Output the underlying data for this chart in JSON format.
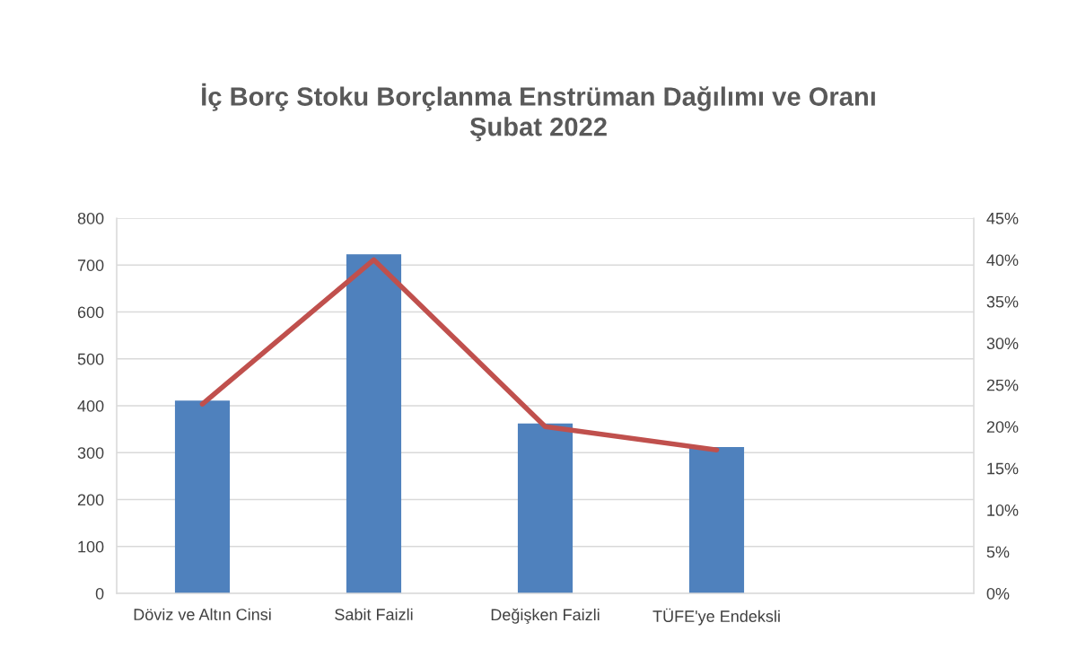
{
  "chart_data": {
    "type": "bar",
    "title": "İç Borç Stoku Borçlanma Enstrüman Dağılımı ve Oranı\nŞubat 2022",
    "categories": [
      "Döviz ve Altın Cinsi",
      "Sabit Faizli",
      "Değişken Faizli",
      "TÜFE'ye Endeksli",
      null
    ],
    "series": [
      {
        "color": "#4f81bd",
        "values": [
          411,
          723,
          362,
          312,
          null
        ]
      },
      {
        "type": "line",
        "axis": "y2",
        "color": "#c0504d",
        "values": [
          22.7,
          40.0,
          20.0,
          17.2,
          null
        ]
      }
    ],
    "ylim": [
      0,
      800
    ],
    "yticks": [
      0,
      100,
      200,
      300,
      400,
      500,
      600,
      700,
      800
    ],
    "y2lim": [
      0,
      45
    ],
    "y2ticks": [
      {
        "value": 0,
        "label": "0%"
      },
      {
        "value": 5,
        "label": "5%"
      },
      {
        "value": 10,
        "label": "10%"
      },
      {
        "value": 15,
        "label": "15%"
      },
      {
        "value": 20,
        "label": "20%"
      },
      {
        "value": 25,
        "label": "25%"
      },
      {
        "value": 30,
        "label": "30%"
      },
      {
        "value": 35,
        "label": "35%"
      },
      {
        "value": 40,
        "label": "40%"
      },
      {
        "value": 45,
        "label": "45%"
      }
    ],
    "grid": "y",
    "line_style": "solid",
    "marker": "none"
  }
}
